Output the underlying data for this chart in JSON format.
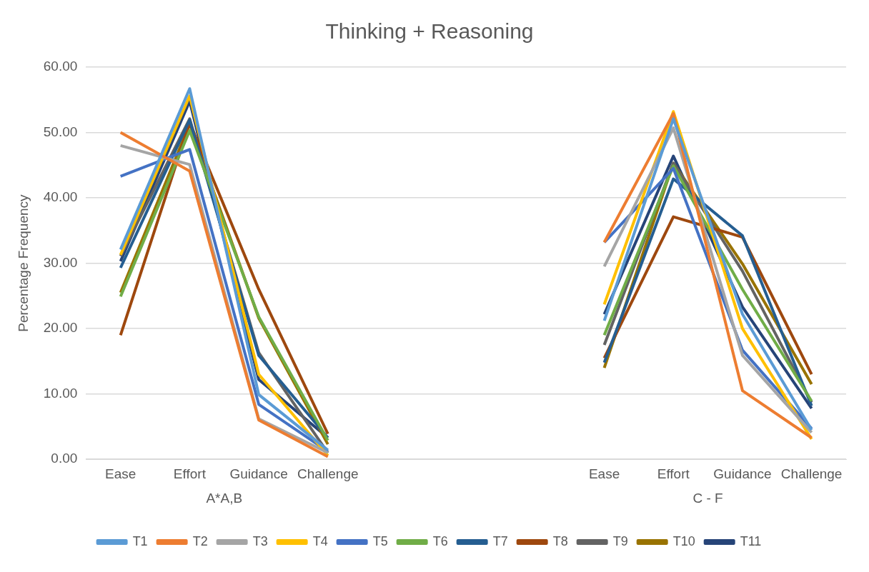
{
  "chart_data": {
    "type": "line",
    "title": "Thinking + Reasoning",
    "ylabel": "Percentage Frequency",
    "categories": [
      "Ease",
      "Effort",
      "Guidance",
      "Challenge",
      null,
      null,
      null,
      "Ease",
      "Effort",
      "Guidance",
      "Challenge"
    ],
    "annotations": [
      "A*A,B",
      "C - F"
    ],
    "ylim": [
      0,
      60
    ],
    "yticks": [
      {
        "value": 0,
        "label": "0.00"
      },
      {
        "value": 10,
        "label": "10.00"
      },
      {
        "value": 20,
        "label": "20.00"
      },
      {
        "value": 30,
        "label": "30.00"
      },
      {
        "value": 40,
        "label": "40.00"
      },
      {
        "value": 50,
        "label": "50.00"
      },
      {
        "value": 60,
        "label": "60.00"
      }
    ],
    "grid": "y",
    "legend": "bottom",
    "marker": "none",
    "line_style": "solid",
    "series": [
      {
        "name": "T1",
        "color": "#5b9bd5",
        "values": [
          32.1,
          56.7,
          9.9,
          1.4,
          null,
          null,
          null,
          21.2,
          52.1,
          22.2,
          4.5
        ]
      },
      {
        "name": "T2",
        "color": "#ed7d31",
        "values": [
          50,
          44.1,
          6,
          0.4,
          null,
          null,
          null,
          33.2,
          52.9,
          10.5,
          3.3
        ]
      },
      {
        "name": "T3",
        "color": "#a5a5a5",
        "values": [
          48,
          45.1,
          6.2,
          1,
          null,
          null,
          null,
          29.5,
          50.7,
          15.9,
          4.1
        ]
      },
      {
        "name": "T4",
        "color": "#ffc000",
        "values": [
          31.3,
          55.6,
          13,
          0.6,
          null,
          null,
          null,
          23.7,
          53.2,
          20,
          3.1
        ]
      },
      {
        "name": "T5",
        "color": "#4472c4",
        "values": [
          43.3,
          47.4,
          8.4,
          1.2,
          null,
          null,
          null,
          33.2,
          44.5,
          16.7,
          4.7
        ]
      },
      {
        "name": "T6",
        "color": "#70ad47",
        "values": [
          24.9,
          50.3,
          21.8,
          2.9,
          null,
          null,
          null,
          19,
          44.9,
          26,
          8.9
        ]
      },
      {
        "name": "T7",
        "color": "#255e91",
        "values": [
          29.3,
          51.9,
          15.9,
          3.3,
          null,
          null,
          null,
          14.8,
          42.9,
          34.2,
          8.2
        ]
      },
      {
        "name": "T8",
        "color": "#9e480e",
        "values": [
          19,
          51.5,
          26,
          3.9,
          null,
          null,
          null,
          15.5,
          37.1,
          34,
          13
        ]
      },
      {
        "name": "T9",
        "color": "#636363",
        "values": [
          31.1,
          52.1,
          16.3,
          1,
          null,
          null,
          null,
          17.5,
          45.3,
          28.8,
          8.7
        ]
      },
      {
        "name": "T10",
        "color": "#997300",
        "values": [
          25.5,
          51.3,
          21.6,
          2.3,
          null,
          null,
          null,
          14,
          45.3,
          29.9,
          11.5
        ]
      },
      {
        "name": "T11",
        "color": "#264478",
        "values": [
          30.3,
          54.8,
          12.2,
          3.3,
          null,
          null,
          null,
          22.2,
          46.4,
          23.3,
          7.8
        ]
      }
    ]
  }
}
